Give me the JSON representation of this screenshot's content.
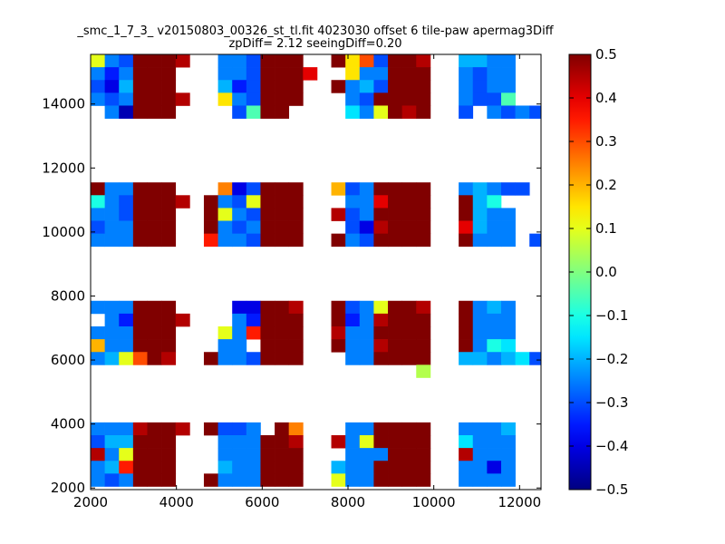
{
  "chart_data": {
    "type": "heatmap",
    "title": "_smc_1_7_3_ v20150803_00326_st_tl.fit 4023030 offset 6 tile-paw apermag3Diff",
    "subtitle": "zpDiff= 2.12 seeingDiff=0.20",
    "xlabel": "",
    "ylabel": "",
    "xlim": [
      2000,
      12500
    ],
    "ylim": [
      1950,
      15550
    ],
    "x_ticks": [
      "2000",
      "4000",
      "6000",
      "8000",
      "10000",
      "12000"
    ],
    "y_ticks": [
      "2000",
      "4000",
      "6000",
      "8000",
      "10000",
      "12000",
      "14000"
    ],
    "colorbar": {
      "colormap": "jet",
      "range": [
        -0.5,
        0.5
      ],
      "ticks": [
        "0.5",
        "0.4",
        "0.3",
        "0.2",
        "0.1",
        "0.0",
        "−0.1",
        "−0.2",
        "−0.3",
        "−0.4",
        "−0.5"
      ]
    },
    "grid": false,
    "cell_size": [
      330,
      400
    ],
    "rows_y": [
      15350,
      14950,
      14550,
      14150,
      13750,
      11350,
      10950,
      10550,
      10150,
      9750,
      7650,
      7250,
      6850,
      6450,
      6050,
      5650,
      3850,
      3450,
      3050,
      2650,
      2250
    ],
    "cols_x": [
      2165,
      2495,
      2825,
      3155,
      3485,
      3815,
      4145,
      4475,
      4805,
      5135,
      5465,
      5795,
      6125,
      6455,
      6785,
      7115,
      7445,
      7775,
      8105,
      8435,
      8765,
      9095,
      9425,
      9755,
      10085,
      10415,
      10745,
      11075,
      11405,
      11735,
      12065,
      12395
    ],
    "values": [
      [
        0.1,
        -0.25,
        -0.3,
        0.5,
        0.5,
        0.5,
        0.45,
        null,
        null,
        -0.25,
        -0.25,
        -0.3,
        0.5,
        0.5,
        0.5,
        null,
        null,
        0.5,
        0.15,
        0.3,
        -0.3,
        0.5,
        0.5,
        0.45,
        null,
        null,
        -0.2,
        -0.2,
        -0.25,
        -0.25,
        null,
        null
      ],
      [
        -0.25,
        -0.35,
        -0.25,
        0.5,
        0.5,
        0.5,
        null,
        null,
        null,
        -0.25,
        -0.25,
        -0.3,
        0.5,
        0.5,
        0.5,
        0.4,
        null,
        null,
        0.15,
        -0.25,
        -0.25,
        0.5,
        0.5,
        0.5,
        null,
        null,
        -0.25,
        -0.3,
        -0.25,
        -0.25,
        null,
        null
      ],
      [
        -0.3,
        -0.4,
        -0.2,
        0.5,
        0.5,
        0.5,
        null,
        null,
        null,
        -0.2,
        -0.35,
        -0.3,
        0.5,
        0.5,
        0.5,
        null,
        null,
        0.5,
        -0.25,
        -0.2,
        -0.3,
        0.5,
        0.5,
        0.5,
        null,
        null,
        -0.25,
        -0.3,
        -0.25,
        -0.25,
        null,
        null
      ],
      [
        -0.25,
        -0.3,
        -0.25,
        0.5,
        0.5,
        0.5,
        0.45,
        null,
        null,
        0.15,
        -0.25,
        -0.3,
        0.5,
        0.5,
        0.5,
        null,
        null,
        null,
        -0.25,
        -0.3,
        0.5,
        0.5,
        0.5,
        0.5,
        null,
        null,
        -0.25,
        -0.3,
        -0.3,
        -0.05,
        null,
        null
      ],
      [
        null,
        -0.25,
        -0.45,
        0.5,
        0.5,
        0.5,
        null,
        null,
        null,
        null,
        -0.3,
        -0.05,
        0.5,
        0.5,
        null,
        null,
        null,
        null,
        -0.15,
        -0.25,
        0.1,
        0.5,
        0.45,
        0.5,
        null,
        null,
        -0.3,
        null,
        -0.25,
        -0.3,
        -0.25,
        -0.3
      ],
      [
        0.5,
        -0.25,
        -0.25,
        0.5,
        0.5,
        0.5,
        null,
        null,
        null,
        0.25,
        -0.4,
        -0.3,
        0.5,
        0.5,
        0.5,
        null,
        null,
        0.2,
        -0.3,
        -0.25,
        0.5,
        0.5,
        0.5,
        0.5,
        null,
        null,
        -0.25,
        -0.2,
        -0.25,
        -0.3,
        -0.3,
        null
      ],
      [
        -0.1,
        -0.25,
        -0.3,
        0.5,
        0.5,
        0.5,
        0.45,
        null,
        0.5,
        -0.25,
        -0.3,
        0.1,
        0.5,
        0.5,
        0.5,
        null,
        null,
        null,
        -0.25,
        -0.25,
        0.4,
        0.5,
        0.5,
        0.5,
        null,
        null,
        0.5,
        -0.2,
        -0.1,
        null,
        null,
        null
      ],
      [
        -0.25,
        -0.25,
        -0.3,
        0.5,
        0.5,
        0.5,
        null,
        null,
        0.5,
        0.1,
        -0.25,
        -0.3,
        0.5,
        0.5,
        0.5,
        null,
        null,
        0.45,
        -0.3,
        -0.25,
        0.5,
        0.5,
        0.5,
        0.5,
        null,
        null,
        0.5,
        -0.2,
        -0.25,
        -0.25,
        null,
        null
      ],
      [
        -0.3,
        -0.25,
        -0.25,
        0.5,
        0.5,
        0.5,
        null,
        null,
        0.5,
        -0.25,
        -0.3,
        -0.25,
        0.5,
        0.5,
        0.5,
        null,
        null,
        null,
        -0.3,
        -0.4,
        0.45,
        0.5,
        0.5,
        0.5,
        null,
        null,
        0.4,
        -0.2,
        -0.25,
        -0.25,
        null,
        null
      ],
      [
        -0.25,
        -0.25,
        -0.25,
        0.5,
        0.5,
        0.5,
        null,
        null,
        0.35,
        -0.25,
        -0.25,
        -0.3,
        0.5,
        0.5,
        0.5,
        null,
        null,
        0.5,
        -0.25,
        -0.3,
        0.5,
        0.5,
        0.5,
        0.5,
        null,
        null,
        0.5,
        -0.25,
        -0.25,
        -0.25,
        null,
        -0.3
      ],
      [
        -0.25,
        -0.25,
        -0.25,
        0.5,
        0.5,
        0.5,
        null,
        null,
        null,
        null,
        -0.4,
        -0.4,
        0.5,
        0.5,
        0.45,
        null,
        null,
        0.5,
        -0.3,
        -0.25,
        0.1,
        0.5,
        0.5,
        0.45,
        null,
        null,
        0.5,
        -0.25,
        -0.2,
        -0.25,
        null,
        null
      ],
      [
        null,
        -0.25,
        -0.35,
        0.5,
        0.5,
        0.5,
        0.45,
        null,
        null,
        null,
        -0.25,
        -0.35,
        0.5,
        0.5,
        0.5,
        null,
        null,
        0.5,
        -0.35,
        -0.25,
        0.45,
        0.5,
        0.5,
        0.5,
        null,
        null,
        0.5,
        -0.25,
        -0.25,
        -0.25,
        null,
        null
      ],
      [
        -0.25,
        -0.25,
        -0.25,
        0.5,
        0.5,
        0.5,
        null,
        null,
        null,
        0.1,
        -0.25,
        0.35,
        0.5,
        0.5,
        0.5,
        null,
        null,
        0.45,
        -0.25,
        -0.25,
        0.5,
        0.5,
        0.5,
        0.5,
        null,
        null,
        0.5,
        -0.25,
        -0.25,
        -0.25,
        null,
        null
      ],
      [
        0.2,
        -0.25,
        -0.25,
        0.5,
        0.5,
        0.5,
        null,
        null,
        null,
        -0.25,
        -0.25,
        null,
        0.5,
        0.5,
        0.5,
        null,
        null,
        0.5,
        -0.25,
        -0.25,
        0.45,
        0.5,
        0.5,
        0.5,
        null,
        null,
        0.5,
        -0.25,
        -0.1,
        -0.15,
        null,
        null
      ],
      [
        -0.25,
        -0.2,
        0.1,
        0.3,
        0.5,
        0.45,
        null,
        null,
        0.5,
        -0.25,
        -0.25,
        -0.3,
        0.5,
        0.5,
        0.5,
        null,
        null,
        null,
        -0.25,
        -0.25,
        0.5,
        0.5,
        0.5,
        0.5,
        null,
        null,
        -0.2,
        -0.2,
        -0.25,
        -0.2,
        -0.15,
        -0.3
      ],
      [
        null,
        null,
        null,
        null,
        null,
        null,
        null,
        null,
        null,
        null,
        null,
        null,
        null,
        null,
        null,
        null,
        null,
        null,
        null,
        null,
        null,
        null,
        null,
        0.05,
        null,
        null,
        null,
        null,
        null,
        null,
        null,
        null
      ],
      [
        -0.25,
        -0.25,
        -0.25,
        0.45,
        0.5,
        0.5,
        0.45,
        null,
        0.5,
        -0.3,
        -0.3,
        -0.25,
        null,
        0.5,
        0.25,
        null,
        null,
        null,
        -0.25,
        -0.25,
        0.5,
        0.5,
        0.5,
        0.5,
        null,
        null,
        -0.25,
        -0.25,
        -0.25,
        -0.2,
        null,
        null
      ],
      [
        -0.3,
        -0.2,
        -0.2,
        0.5,
        0.5,
        0.5,
        null,
        null,
        null,
        -0.25,
        -0.25,
        -0.25,
        0.5,
        0.5,
        0.45,
        null,
        null,
        0.45,
        -0.25,
        0.1,
        0.5,
        0.5,
        0.5,
        0.5,
        null,
        null,
        -0.15,
        -0.25,
        -0.25,
        -0.25,
        null,
        null
      ],
      [
        0.45,
        -0.25,
        0.1,
        0.5,
        0.5,
        0.5,
        null,
        null,
        null,
        -0.25,
        -0.25,
        -0.25,
        0.5,
        0.5,
        0.5,
        null,
        null,
        null,
        -0.25,
        -0.25,
        -0.25,
        0.5,
        0.5,
        0.5,
        null,
        null,
        0.45,
        -0.25,
        -0.25,
        -0.25,
        null,
        null
      ],
      [
        -0.25,
        -0.2,
        0.35,
        0.5,
        0.5,
        0.5,
        null,
        null,
        null,
        -0.2,
        -0.25,
        -0.25,
        0.5,
        0.5,
        0.5,
        null,
        null,
        -0.2,
        -0.25,
        -0.25,
        0.5,
        0.5,
        0.5,
        0.5,
        null,
        null,
        -0.25,
        -0.25,
        -0.4,
        -0.25,
        null,
        null
      ],
      [
        -0.25,
        -0.3,
        -0.25,
        0.5,
        0.5,
        0.5,
        null,
        null,
        0.5,
        -0.25,
        -0.25,
        -0.25,
        0.5,
        0.5,
        0.5,
        null,
        null,
        0.1,
        -0.25,
        -0.25,
        0.5,
        0.5,
        0.5,
        0.5,
        null,
        null,
        -0.25,
        -0.25,
        -0.25,
        -0.25,
        null,
        null
      ]
    ]
  }
}
